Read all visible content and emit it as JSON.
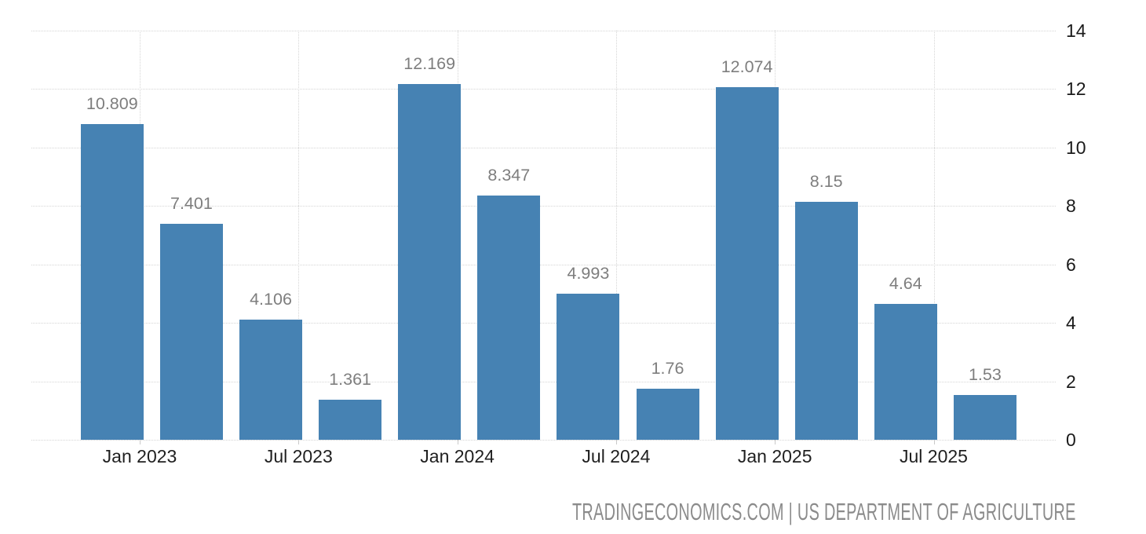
{
  "chart_data": {
    "type": "bar",
    "title": "",
    "xlabel": "",
    "ylabel": "",
    "values": [
      10.809,
      7.401,
      4.106,
      1.361,
      12.169,
      8.347,
      4.993,
      1.76,
      12.074,
      8.15,
      4.64,
      1.53
    ],
    "value_labels": [
      "10.809",
      "7.401",
      "4.106",
      "1.361",
      "12.169",
      "8.347",
      "4.993",
      "1.76",
      "12.074",
      "8.15",
      "4.64",
      "1.53"
    ],
    "x_tick_labels": [
      "Jan 2023",
      "Jul 2023",
      "Jan 2024",
      "Jul 2024",
      "Jan 2025",
      "Jul 2025"
    ],
    "y_tick_labels": [
      "0",
      "2",
      "4",
      "6",
      "8",
      "10",
      "12",
      "14"
    ],
    "ylim": [
      0,
      14
    ],
    "y_tick_step": 2,
    "y_axis_side": "right",
    "grid": "dotted",
    "legend_position": "none",
    "colors": {
      "bar": "#4682b3",
      "value_label": "#7e7e7e",
      "x_axis_label": "#1f1f1f",
      "y_axis_label": "#1a1a1a",
      "gridline": "#d5d5d5",
      "tick": "#c9c9c9",
      "background": "#ffffff"
    }
  },
  "footer": {
    "source_text": "TRADINGECONOMICS.COM | US DEPARTMENT OF AGRICULTURE"
  }
}
